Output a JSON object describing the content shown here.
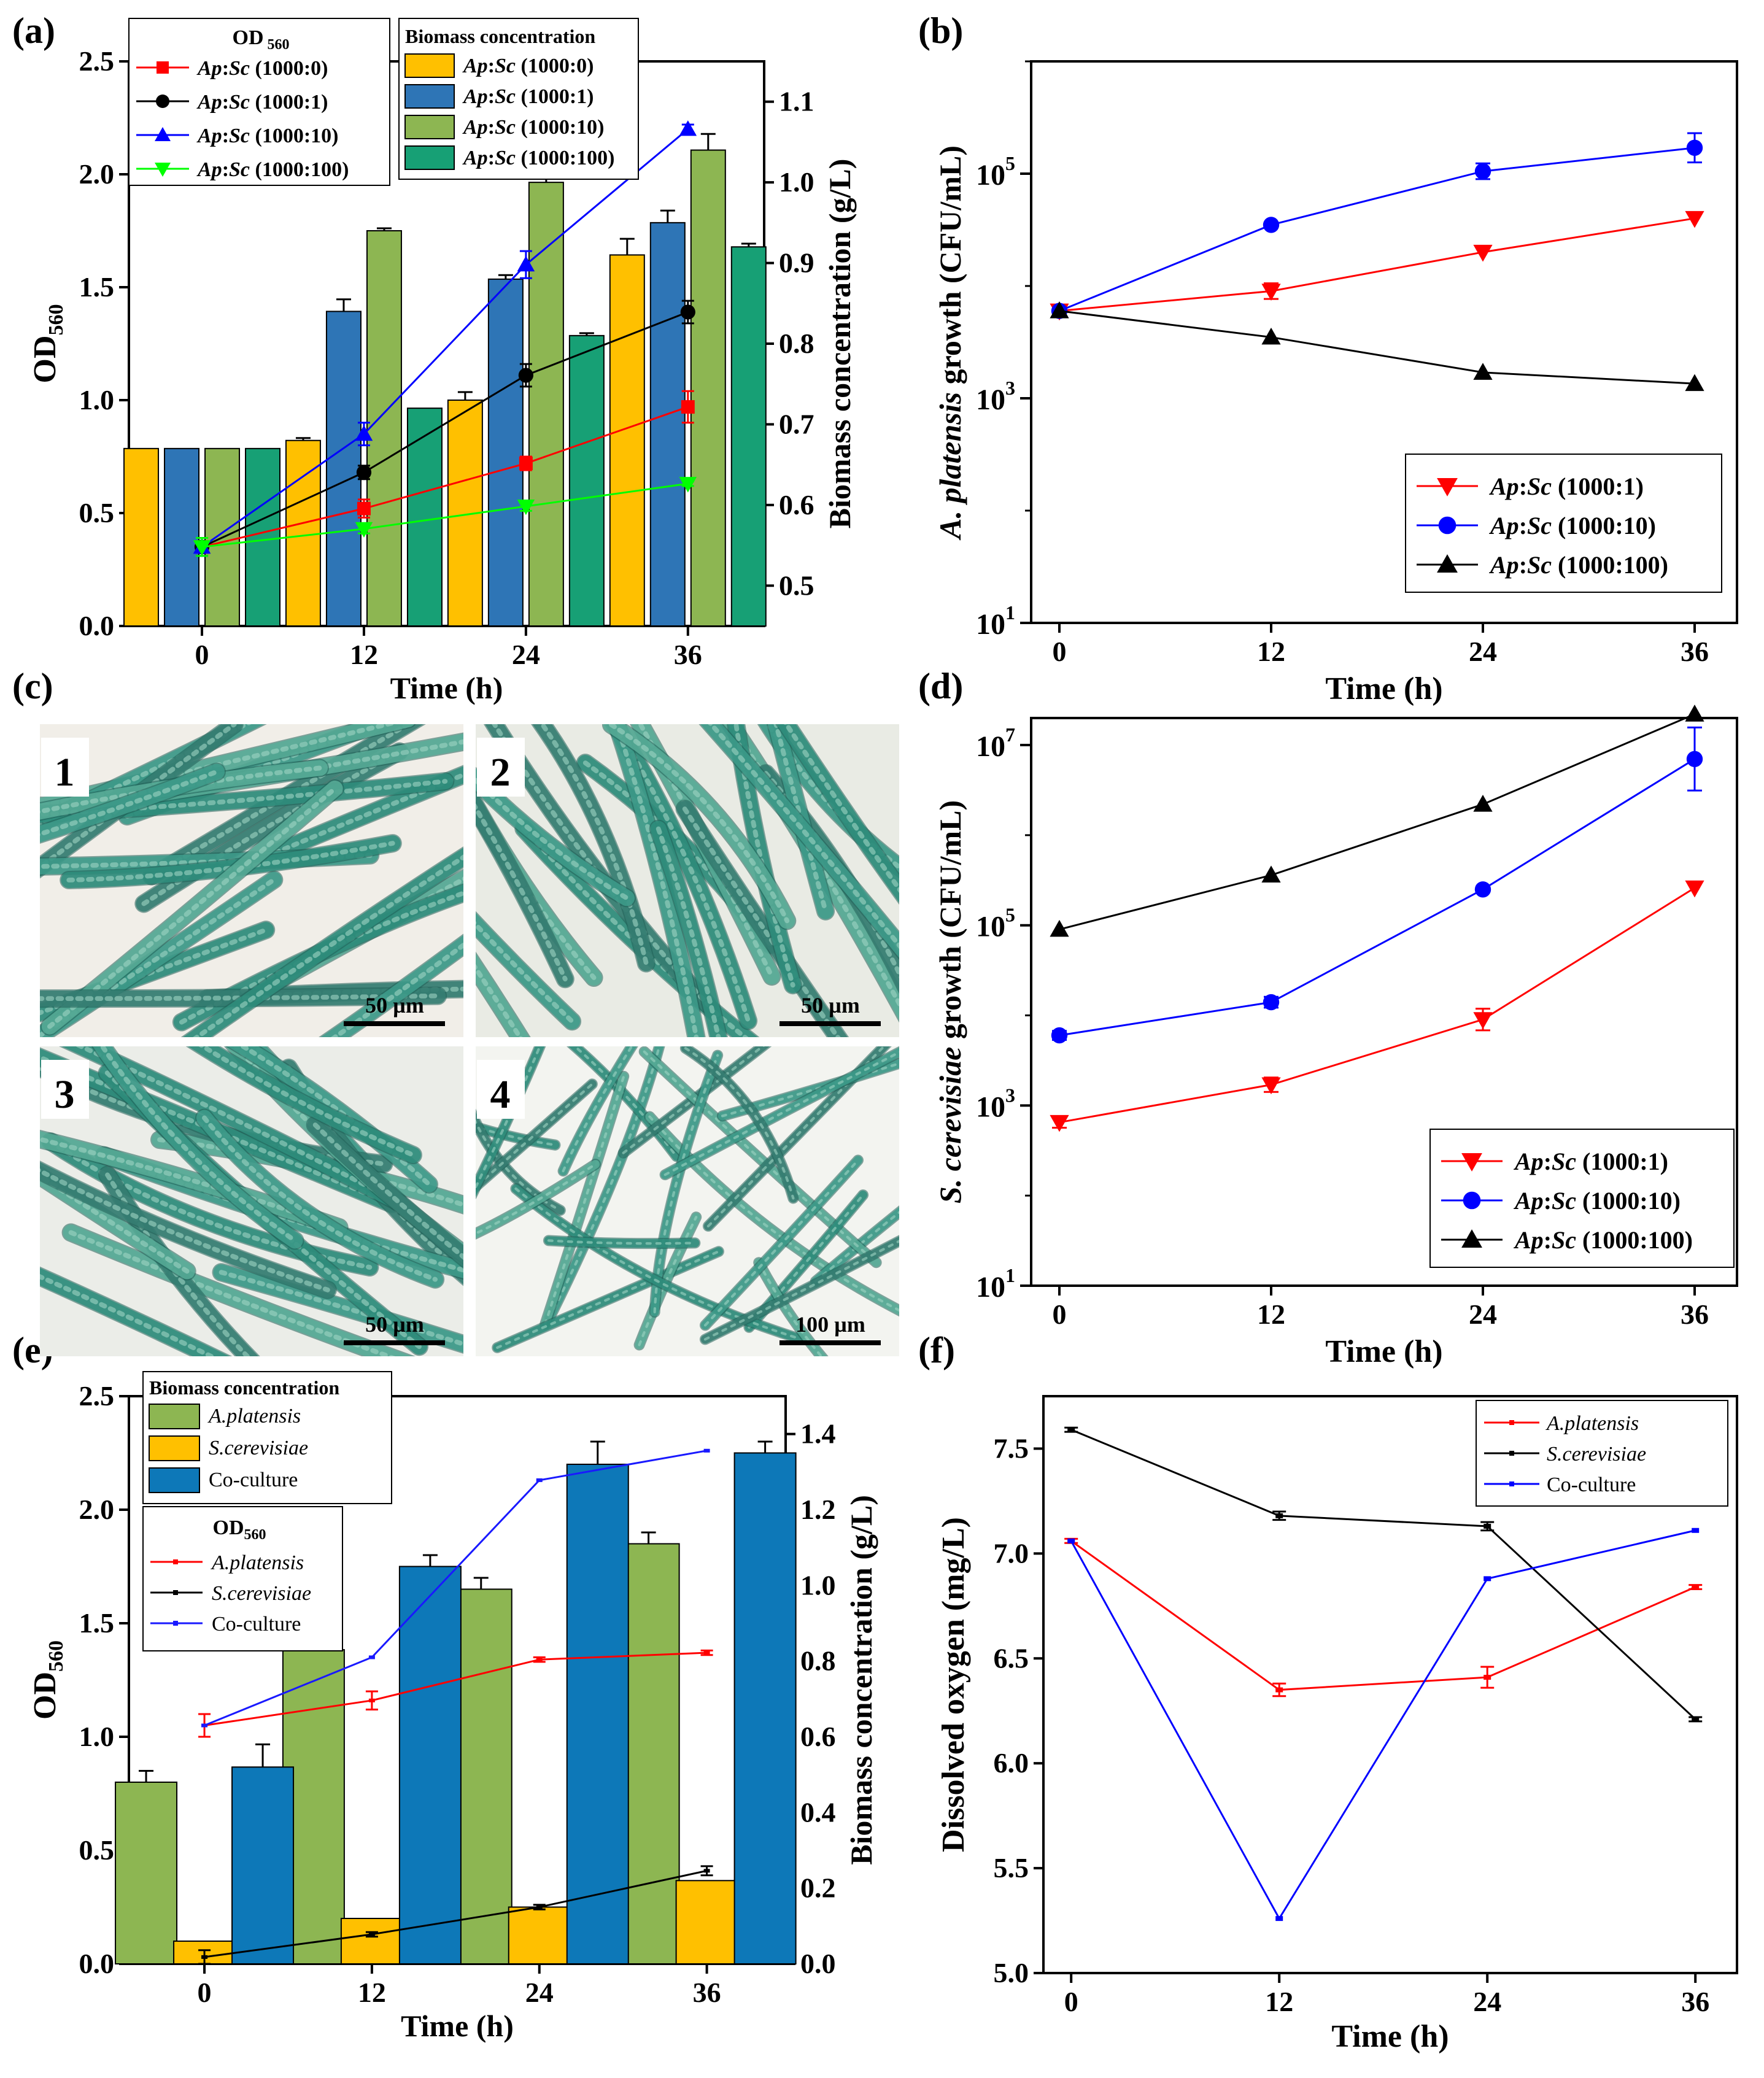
{
  "panels": {
    "a": "(a)",
    "b": "(b)",
    "c": "(c)",
    "d": "(d)",
    "e": "(e)",
    "f": "(f)"
  },
  "colors": {
    "yellow": "#FFC000",
    "blue": "#2E75B6",
    "green": "#8DB652",
    "teal": "#17A075",
    "coBlue": "#0D78B8",
    "red": "#FF0000",
    "black": "#000000",
    "lineBlue": "#0000FF",
    "lime": "#00FF00",
    "mid": "#1919FF"
  },
  "chart_data": [
    {
      "id": "a",
      "type": "bar+line",
      "xlabel": "Time (h)",
      "ylabel": "OD",
      "ylabel_sub": "560",
      "y2label": "Biomass concentration (g/L)",
      "categories": [
        "0",
        "12",
        "24",
        "36"
      ],
      "x": [
        0,
        12,
        24,
        36
      ],
      "ylim": [
        0,
        2.5
      ],
      "yticks": [
        "0.0",
        "0.5",
        "1.0",
        "1.5",
        "2.0",
        "2.5"
      ],
      "y2lim": [
        0.45,
        1.15
      ],
      "y2ticks": [
        "0.5",
        "0.6",
        "0.7",
        "0.8",
        "0.9",
        "1.0",
        "1.1"
      ],
      "bars": [
        {
          "name": "Ap:Sc (1000:0)",
          "color": "#FFC000",
          "values": [
            0.67,
            0.68,
            0.73,
            0.91
          ],
          "err": [
            0.0,
            0.003,
            0.01,
            0.02
          ]
        },
        {
          "name": "Ap:Sc (1000:1)",
          "color": "#2E75B6",
          "values": [
            0.67,
            0.84,
            0.88,
            0.95
          ],
          "err": [
            0.0,
            0.015,
            0.005,
            0.015
          ]
        },
        {
          "name": "Ap:Sc (1000:10)",
          "color": "#8DB652",
          "values": [
            0.67,
            0.94,
            1.0,
            1.04
          ],
          "err": [
            0.0,
            0.003,
            0.03,
            0.02
          ]
        },
        {
          "name": "Ap:Sc (1000:100)",
          "color": "#17A075",
          "values": [
            0.67,
            0.72,
            0.81,
            0.92
          ],
          "err": [
            0.0,
            0.0,
            0.003,
            0.004
          ]
        }
      ],
      "lines": [
        {
          "name": "Ap:Sc (1000:0)",
          "color": "#FF0000",
          "marker": "square",
          "values": [
            0.35,
            0.52,
            0.72,
            0.97
          ],
          "err": [
            0.04,
            0.04,
            0.03,
            0.07
          ]
        },
        {
          "name": "Ap:Sc (1000:1)",
          "color": "#000000",
          "marker": "circle",
          "values": [
            0.35,
            0.68,
            1.11,
            1.39
          ],
          "err": [
            0.04,
            0.03,
            0.05,
            0.05
          ]
        },
        {
          "name": "Ap:Sc (1000:10)",
          "color": "#0000FF",
          "marker": "triangle",
          "values": [
            0.35,
            0.85,
            1.6,
            2.2
          ],
          "err": [
            0.04,
            0.05,
            0.06,
            0.02
          ]
        },
        {
          "name": "Ap:Sc (1000:100)",
          "color": "#00FF00",
          "marker": "triangle-down",
          "values": [
            0.35,
            0.43,
            0.53,
            0.63
          ],
          "err": [
            0.04,
            0.02,
            0.02,
            0.01
          ]
        }
      ],
      "legend_od_title": "OD",
      "legend_od_sub": "560",
      "legend_bio_title": "Biomass concentration"
    },
    {
      "id": "b",
      "type": "line",
      "scale": "log",
      "xlabel": "Time (h)",
      "ylabel_italic": "A. platensis",
      "ylabel_rest": " growth (CFU/mL)",
      "x": [
        0,
        12,
        24,
        36
      ],
      "xticks": [
        "0",
        "12",
        "24",
        "36"
      ],
      "ylim_exp": [
        1,
        6
      ],
      "yticks": [
        {
          "base": "10",
          "exp": "1"
        },
        {
          "base": "10",
          "exp": "3"
        },
        {
          "base": "10",
          "exp": "5"
        }
      ],
      "series": [
        {
          "name": "Ap:Sc (1000:1)",
          "color": "#FF0000",
          "marker": "triangle-down",
          "values": [
            6000,
            9000,
            20000,
            40000
          ],
          "err_exp": [
            0,
            0.07,
            0,
            0
          ]
        },
        {
          "name": "Ap:Sc (1000:10)",
          "color": "#0000FF",
          "marker": "circle",
          "values": [
            6000,
            35000,
            105000,
            170000
          ],
          "err_exp": [
            0,
            0,
            0.07,
            0.13
          ]
        },
        {
          "name": "Ap:Sc (1000:100)",
          "color": "#000000",
          "marker": "triangle",
          "values": [
            6000,
            3500,
            1700,
            1350
          ],
          "err_exp": [
            0,
            0,
            0,
            0
          ]
        }
      ]
    },
    {
      "id": "d",
      "type": "line",
      "scale": "log",
      "xlabel": "Time (h)",
      "ylabel_italic": "S. cerevisiae",
      "ylabel_rest": " growth (CFU/mL)",
      "x": [
        0,
        12,
        24,
        36
      ],
      "xticks": [
        "0",
        "12",
        "24",
        "36"
      ],
      "ylim_exp": [
        1,
        7.3
      ],
      "yticks": [
        {
          "base": "10",
          "exp": "1"
        },
        {
          "base": "10",
          "exp": "3"
        },
        {
          "base": "10",
          "exp": "5"
        },
        {
          "base": "10",
          "exp": "7"
        }
      ],
      "series": [
        {
          "name": "Ap:Sc (1000:1)",
          "color": "#FF0000",
          "marker": "triangle-down",
          "values": [
            650,
            1700,
            9000,
            260000
          ],
          "err_exp": [
            0.06,
            0.08,
            0.12,
            0
          ]
        },
        {
          "name": "Ap:Sc (1000:10)",
          "color": "#0000FF",
          "marker": "circle",
          "values": [
            6000,
            14000,
            250000,
            7000000
          ],
          "err_exp": [
            0.05,
            0.06,
            0,
            0.35
          ]
        },
        {
          "name": "Ap:Sc (1000:100)",
          "color": "#000000",
          "marker": "triangle",
          "values": [
            90000,
            360000,
            2200000,
            22000000
          ],
          "err_exp": [
            0,
            0,
            0,
            0
          ]
        }
      ]
    },
    {
      "id": "e",
      "type": "bar+line",
      "xlabel": "Time (h)",
      "ylabel": "OD",
      "ylabel_sub": "560",
      "y2label": "Biomass concentration (g/L)",
      "categories": [
        "0",
        "12",
        "24",
        "36"
      ],
      "x": [
        0,
        12,
        24,
        36
      ],
      "ylim": [
        0,
        2.5
      ],
      "yticks": [
        "0.0",
        "0.5",
        "1.0",
        "1.5",
        "2.0",
        "2.5"
      ],
      "y2lim": [
        0,
        1.5
      ],
      "y2ticks": [
        "0.0",
        "0.2",
        "0.4",
        "0.6",
        "0.8",
        "1.0",
        "1.2",
        "1.4"
      ],
      "bars": [
        {
          "name": "A.platensis",
          "color": "#8DB652",
          "values": [
            0.48,
            0.83,
            0.99,
            1.11
          ],
          "err": [
            0.03,
            0.04,
            0.03,
            0.03
          ]
        },
        {
          "name": "S.cerevisiae",
          "color": "#FFC000",
          "values": [
            0.06,
            0.12,
            0.15,
            0.22
          ],
          "err": [
            0.0,
            0.0,
            0.0,
            0.0
          ]
        },
        {
          "name": "Co-culture",
          "color": "#0D78B8",
          "values": [
            0.52,
            1.05,
            1.32,
            1.35
          ],
          "err": [
            0.06,
            0.03,
            0.06,
            0.03
          ]
        }
      ],
      "lines": [
        {
          "name": "A.platensis",
          "color": "#FF0000",
          "values": [
            1.05,
            1.16,
            1.34,
            1.37
          ],
          "err": [
            0.05,
            0.04,
            0.01,
            0.01
          ]
        },
        {
          "name": "S.cerevisiae",
          "color": "#000000",
          "values": [
            0.03,
            0.13,
            0.25,
            0.41
          ],
          "err": [
            0.03,
            0.01,
            0.01,
            0.02
          ]
        },
        {
          "name": "Co-culture",
          "color": "#1919FF",
          "values": [
            1.05,
            1.35,
            2.13,
            2.26
          ],
          "err": [
            0,
            0,
            0,
            0
          ]
        }
      ],
      "legend_od_title": "OD",
      "legend_od_sub": "560",
      "legend_bio_title": "Biomass concentration"
    },
    {
      "id": "f",
      "type": "line",
      "xlabel": "Time (h)",
      "ylabel": "Dissolved oxygen (mg/L)",
      "x": [
        0,
        12,
        24,
        36
      ],
      "xticks": [
        "0",
        "12",
        "24",
        "36"
      ],
      "ylim": [
        5.0,
        7.75
      ],
      "yticks": [
        "5.0",
        "5.5",
        "6.0",
        "6.5",
        "7.0",
        "7.5"
      ],
      "series": [
        {
          "name": "A.platensis",
          "color": "#FF0000",
          "values": [
            7.06,
            6.35,
            6.41,
            6.84
          ],
          "err": [
            0.01,
            0.03,
            0.05,
            0.01
          ]
        },
        {
          "name": "S.cerevisiae",
          "color": "#000000",
          "values": [
            7.59,
            7.18,
            7.13,
            6.21
          ],
          "err": [
            0.01,
            0.02,
            0.02,
            0.01
          ]
        },
        {
          "name": "Co-culture",
          "color": "#0000FF",
          "values": [
            7.06,
            5.26,
            6.88,
            7.11
          ],
          "err": [
            0,
            0,
            0,
            0
          ]
        }
      ]
    }
  ],
  "micrographs": [
    {
      "number": "1",
      "scale": "50 µm"
    },
    {
      "number": "2",
      "scale": "50 µm"
    },
    {
      "number": "3",
      "scale": "50 µm"
    },
    {
      "number": "4",
      "scale": "100 µm"
    }
  ]
}
